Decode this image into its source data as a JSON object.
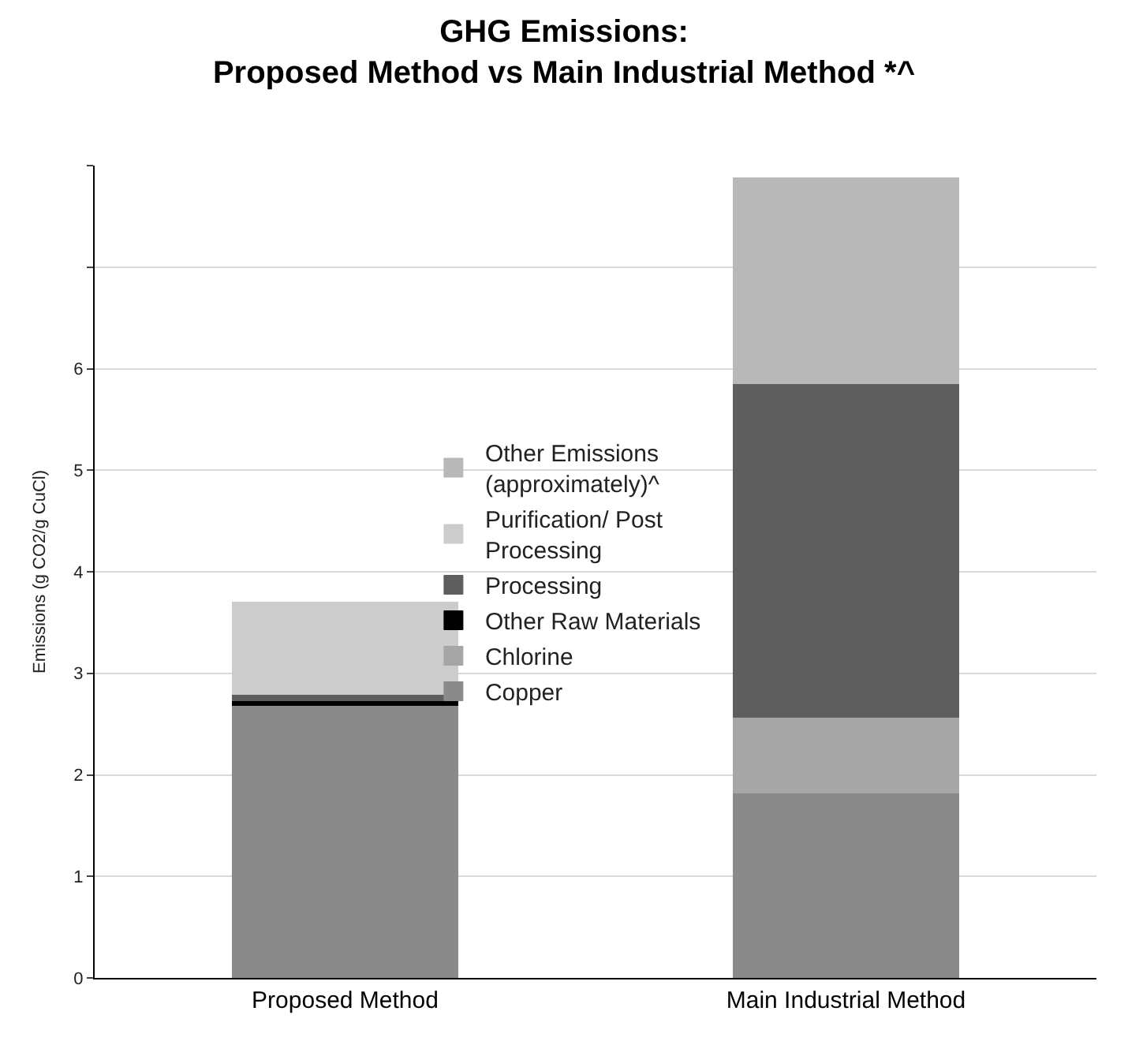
{
  "chart_data": {
    "type": "bar",
    "stacked": true,
    "title": "GHG Emissions:\nProposed Method vs Main Industrial Method *^",
    "ylabel": "Emissions (g CO2/g CuCl)",
    "categories": [
      "Proposed Method",
      "Main Industrial Method"
    ],
    "series": [
      {
        "name": "Copper",
        "color": "#8a8a8a",
        "values": [
          2.68,
          1.82
        ]
      },
      {
        "name": "Chlorine",
        "color": "#a6a6a6",
        "values": [
          null,
          0.75
        ]
      },
      {
        "name": "Other Raw Materials",
        "color": "#000000",
        "values": [
          0.05,
          null
        ]
      },
      {
        "name": "Processing",
        "color": "#5e5e5e",
        "values": [
          0.06,
          3.28
        ]
      },
      {
        "name": "Purification/ Post\nProcessing",
        "color": "#cccccc",
        "values": [
          0.91,
          null
        ]
      },
      {
        "name": "Other Emissions\n(approximately)^",
        "color": "#b8b8b8",
        "values": [
          null,
          2.03
        ]
      }
    ],
    "ylim": [
      0,
      8
    ],
    "yticks": [
      0,
      1,
      2,
      3,
      4,
      5,
      6,
      {
        "value": 7,
        "label": null
      },
      {
        "value": 8,
        "label": null
      }
    ],
    "grid": "y",
    "legend": "center"
  }
}
